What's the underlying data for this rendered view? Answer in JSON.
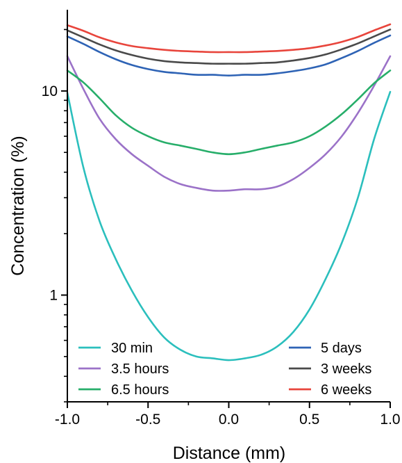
{
  "chart_data": {
    "type": "line",
    "xlabel": "Distance (mm)",
    "ylabel": "Concentration (%)",
    "xlim": [
      -1.0,
      1.0
    ],
    "ylim": [
      0.3,
      25
    ],
    "yscale": "log",
    "x_ticks": [
      "-1.0",
      "-0.5",
      "0.0",
      "0.5",
      "1.0"
    ],
    "y_ticks": [
      "1",
      "10"
    ],
    "grid": false,
    "legend": [
      {
        "label": "30 min",
        "color": "#2bbfbd"
      },
      {
        "label": "3.5 hours",
        "color": "#9b72c8"
      },
      {
        "label": "6.5 hours",
        "color": "#27ae6a"
      },
      {
        "label": "5 days",
        "color": "#2e63b5"
      },
      {
        "label": "3 weeks",
        "color": "#4a4a4a"
      },
      {
        "label": "6 weeks",
        "color": "#e8453c"
      }
    ],
    "series": [
      {
        "name": "30 min",
        "color": "#2bbfbd",
        "x": [
          -1.0,
          -0.9,
          -0.8,
          -0.7,
          -0.6,
          -0.5,
          -0.4,
          -0.3,
          -0.2,
          -0.1,
          0.0,
          0.1,
          0.2,
          0.3,
          0.4,
          0.5,
          0.6,
          0.7,
          0.8,
          0.9,
          1.0
        ],
        "y": [
          9.8,
          4.2,
          2.3,
          1.5,
          1.05,
          0.78,
          0.62,
          0.54,
          0.5,
          0.49,
          0.48,
          0.49,
          0.51,
          0.56,
          0.66,
          0.85,
          1.2,
          1.8,
          3.0,
          5.8,
          9.9
        ]
      },
      {
        "name": "3.5 hours",
        "color": "#9b72c8",
        "x": [
          -1.0,
          -0.9,
          -0.8,
          -0.7,
          -0.6,
          -0.5,
          -0.4,
          -0.3,
          -0.2,
          -0.1,
          0.0,
          0.1,
          0.2,
          0.3,
          0.4,
          0.5,
          0.6,
          0.7,
          0.8,
          0.9,
          1.0
        ],
        "y": [
          14.8,
          10.2,
          7.3,
          5.8,
          4.9,
          4.3,
          3.8,
          3.5,
          3.35,
          3.25,
          3.25,
          3.3,
          3.3,
          3.4,
          3.7,
          4.2,
          4.9,
          6.0,
          7.8,
          10.6,
          14.8
        ]
      },
      {
        "name": "6.5 hours",
        "color": "#27ae6a",
        "x": [
          -1.0,
          -0.9,
          -0.8,
          -0.7,
          -0.6,
          -0.5,
          -0.4,
          -0.3,
          -0.2,
          -0.1,
          0.0,
          0.1,
          0.2,
          0.3,
          0.4,
          0.5,
          0.6,
          0.7,
          0.8,
          0.9,
          1.0
        ],
        "y": [
          12.6,
          11.0,
          9.2,
          7.6,
          6.6,
          6.0,
          5.6,
          5.4,
          5.2,
          5.0,
          4.9,
          5.0,
          5.2,
          5.4,
          5.6,
          6.0,
          6.7,
          7.7,
          9.1,
          10.9,
          12.6
        ]
      },
      {
        "name": "5 days",
        "color": "#2e63b5",
        "x": [
          -1.0,
          -0.9,
          -0.8,
          -0.7,
          -0.6,
          -0.5,
          -0.4,
          -0.3,
          -0.2,
          -0.1,
          0.0,
          0.1,
          0.2,
          0.3,
          0.4,
          0.5,
          0.6,
          0.7,
          0.8,
          0.9,
          1.0
        ],
        "y": [
          18.5,
          17.0,
          15.5,
          14.3,
          13.4,
          12.8,
          12.4,
          12.2,
          12.0,
          12.0,
          11.9,
          12.0,
          12.0,
          12.2,
          12.5,
          12.9,
          13.5,
          14.5,
          15.7,
          17.2,
          18.7
        ]
      },
      {
        "name": "3 weeks",
        "color": "#4a4a4a",
        "x": [
          -1.0,
          -0.9,
          -0.8,
          -0.7,
          -0.6,
          -0.5,
          -0.4,
          -0.3,
          -0.2,
          -0.1,
          0.0,
          0.1,
          0.2,
          0.3,
          0.4,
          0.5,
          0.6,
          0.7,
          0.8,
          0.9,
          1.0
        ],
        "y": [
          19.8,
          18.3,
          16.9,
          15.8,
          15.0,
          14.4,
          14.0,
          13.8,
          13.7,
          13.6,
          13.6,
          13.6,
          13.7,
          13.8,
          14.1,
          14.5,
          15.1,
          16.0,
          17.1,
          18.5,
          20.0
        ]
      },
      {
        "name": "6 weeks",
        "color": "#e8453c",
        "x": [
          -1.0,
          -0.9,
          -0.8,
          -0.7,
          -0.6,
          -0.5,
          -0.4,
          -0.3,
          -0.2,
          -0.1,
          0.0,
          0.1,
          0.2,
          0.3,
          0.4,
          0.5,
          0.6,
          0.7,
          0.8,
          0.9,
          1.0
        ],
        "y": [
          21.0,
          19.7,
          18.3,
          17.3,
          16.6,
          16.2,
          15.9,
          15.7,
          15.6,
          15.5,
          15.5,
          15.5,
          15.6,
          15.7,
          15.9,
          16.2,
          16.7,
          17.4,
          18.4,
          19.8,
          21.2
        ]
      }
    ]
  }
}
